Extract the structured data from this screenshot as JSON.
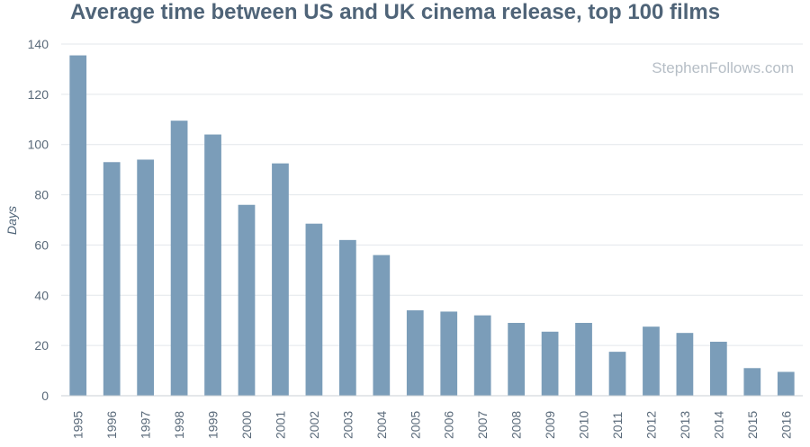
{
  "chart_data": {
    "type": "bar",
    "title": "Average time between US and UK cinema release, top 100 films",
    "xlabel": "",
    "ylabel": "Days",
    "ylim": [
      0,
      140
    ],
    "yticks": [
      0,
      20,
      40,
      60,
      80,
      100,
      120,
      140
    ],
    "categories": [
      "1995",
      "1996",
      "1997",
      "1998",
      "1999",
      "2000",
      "2001",
      "2002",
      "2003",
      "2004",
      "2005",
      "2006",
      "2007",
      "2008",
      "2009",
      "2010",
      "2011",
      "2012",
      "2013",
      "2014",
      "2015",
      "2016"
    ],
    "values": [
      135.5,
      93,
      94,
      109.5,
      104,
      76,
      92.5,
      68.5,
      62,
      56,
      34,
      33.5,
      32,
      29,
      25.5,
      29,
      17.5,
      27.5,
      25,
      21.5,
      11,
      9.5
    ],
    "bar_color": "#7b9db9",
    "grid": true,
    "watermark": "StephenFollows.com"
  }
}
